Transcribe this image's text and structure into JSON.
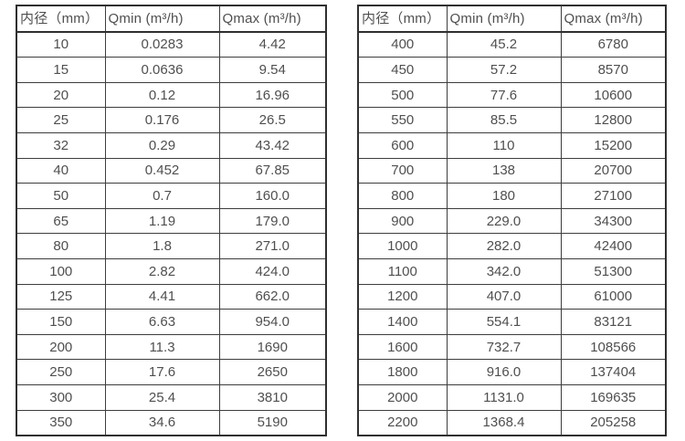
{
  "page": {
    "background": "#ffffff",
    "text_color": "#4f4f4f",
    "border_color": "#2f2f2f"
  },
  "tables": [
    {
      "name": "small-diameters",
      "headers": [
        "内径（mm）",
        "Qmin (m³/h)",
        "Qmax (m³/h)"
      ],
      "rows": [
        [
          "10",
          "0.0283",
          "4.42"
        ],
        [
          "15",
          "0.0636",
          "9.54"
        ],
        [
          "20",
          "0.12",
          "16.96"
        ],
        [
          "25",
          "0.176",
          "26.5"
        ],
        [
          "32",
          "0.29",
          "43.42"
        ],
        [
          "40",
          "0.452",
          "67.85"
        ],
        [
          "50",
          "0.7",
          "160.0"
        ],
        [
          "65",
          "1.19",
          "179.0"
        ],
        [
          "80",
          "1.8",
          "271.0"
        ],
        [
          "100",
          "2.82",
          "424.0"
        ],
        [
          "125",
          "4.41",
          "662.0"
        ],
        [
          "150",
          "6.63",
          "954.0"
        ],
        [
          "200",
          "11.3",
          "1690"
        ],
        [
          "250",
          "17.6",
          "2650"
        ],
        [
          "300",
          "25.4",
          "3810"
        ],
        [
          "350",
          "34.6",
          "5190"
        ]
      ]
    },
    {
      "name": "large-diameters",
      "headers": [
        "内径（mm）",
        "Qmin (m³/h)",
        "Qmax (m³/h)"
      ],
      "rows": [
        [
          "400",
          "45.2",
          "6780"
        ],
        [
          "450",
          "57.2",
          "8570"
        ],
        [
          "500",
          "77.6",
          "10600"
        ],
        [
          "550",
          "85.5",
          "12800"
        ],
        [
          "600",
          "110",
          "15200"
        ],
        [
          "700",
          "138",
          "20700"
        ],
        [
          "800",
          "180",
          "27100"
        ],
        [
          "900",
          "229.0",
          "34300"
        ],
        [
          "1000",
          "282.0",
          "42400"
        ],
        [
          "1100",
          "342.0",
          "51300"
        ],
        [
          "1200",
          "407.0",
          "61000"
        ],
        [
          "1400",
          "554.1",
          "83121"
        ],
        [
          "1600",
          "732.7",
          "108566"
        ],
        [
          "1800",
          "916.0",
          "137404"
        ],
        [
          "2000",
          "1131.0",
          "169635"
        ],
        [
          "2200",
          "1368.4",
          "205258"
        ]
      ]
    }
  ]
}
